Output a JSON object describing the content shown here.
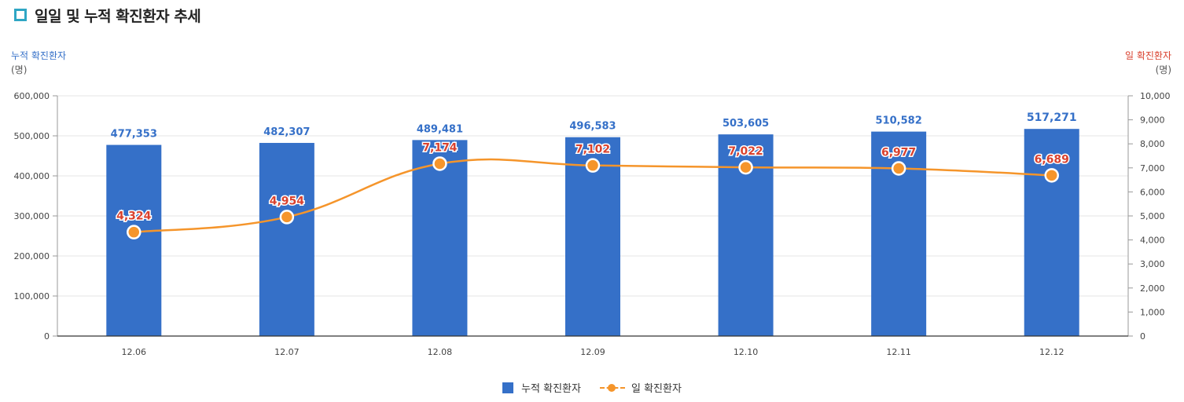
{
  "header": {
    "title": "일일 및 누적 확진환자 추세"
  },
  "colors": {
    "bar": "#3570c8",
    "line": "#f5952b",
    "line_label": "#d9412e",
    "left_axis_title": "#3570c8",
    "right_axis_title": "#d9412e",
    "title_icon": "#2fa6c4"
  },
  "chart_data": {
    "type": "bar",
    "categories": [
      "12.06",
      "12.07",
      "12.08",
      "12.09",
      "12.10",
      "12.11",
      "12.12"
    ],
    "series": [
      {
        "name": "누적 확진환자",
        "type": "bar",
        "axis": "left",
        "values": [
          477353,
          482307,
          489481,
          496583,
          503605,
          510582,
          517271
        ],
        "labels": [
          "477,353",
          "482,307",
          "489,481",
          "496,583",
          "503,605",
          "510,582",
          "517,271"
        ]
      },
      {
        "name": "일 확진환자",
        "type": "line",
        "axis": "right",
        "values": [
          4324,
          4954,
          7174,
          7102,
          7022,
          6977,
          6689
        ],
        "labels": [
          "4,324",
          "4,954",
          "7,174",
          "7,102",
          "7,022",
          "6,977",
          "6,689"
        ]
      }
    ],
    "y_left": {
      "title": "누적 확진환자",
      "unit": "(명)",
      "range": [
        0,
        600000
      ],
      "ticks": [
        0,
        100000,
        200000,
        300000,
        400000,
        500000,
        600000
      ],
      "tick_labels": [
        "0",
        "100,000",
        "200,000",
        "300,000",
        "400,000",
        "500,000",
        "600,000"
      ]
    },
    "y_right": {
      "title": "일 확진환자",
      "unit": "(명)",
      "range": [
        0,
        10000
      ],
      "ticks": [
        0,
        1000,
        2000,
        3000,
        4000,
        5000,
        6000,
        7000,
        8000,
        9000,
        10000
      ],
      "tick_labels": [
        "0",
        "1,000",
        "2,000",
        "3,000",
        "4,000",
        "5,000",
        "6,000",
        "7,000",
        "8,000",
        "9,000",
        "10,000"
      ]
    },
    "grid": true,
    "legend_position": "bottom-center"
  },
  "legend": {
    "bar_label": "누적 확진환자",
    "line_label": "일 확진환자"
  }
}
